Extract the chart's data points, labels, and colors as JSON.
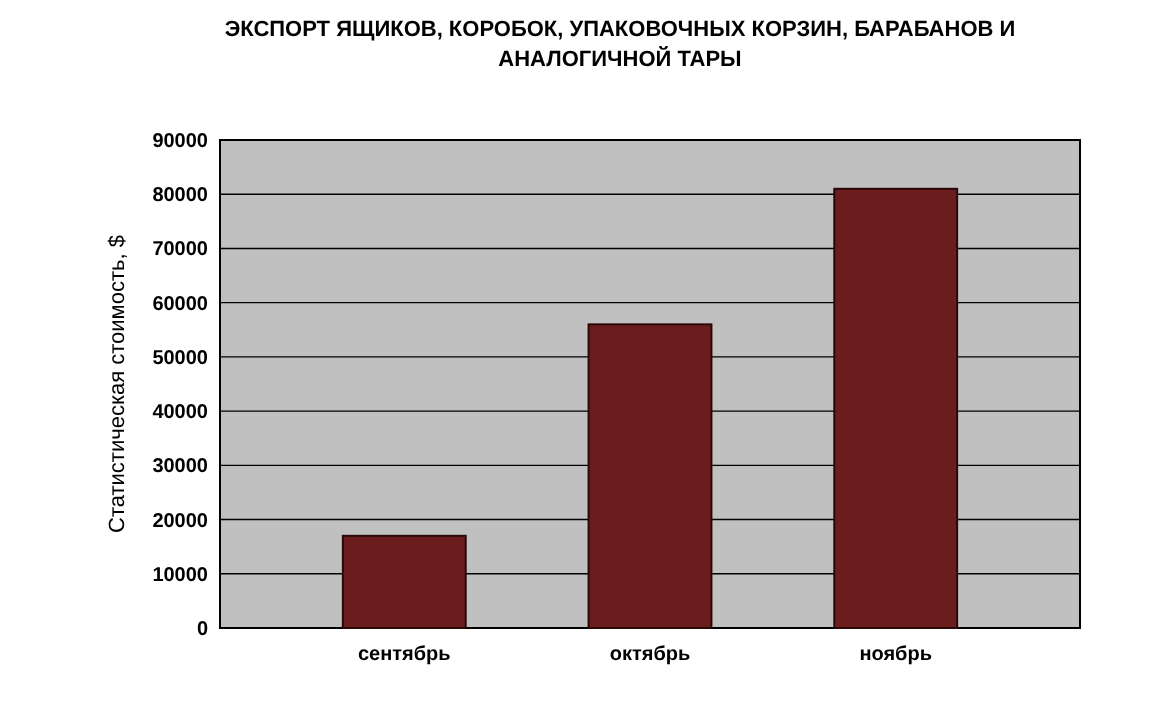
{
  "chart_data": {
    "type": "bar",
    "title": "ЭКСПОРТ ЯЩИКОВ, КОРОБОК, УПАКОВОЧНЫХ КОРЗИН, БАРАБАНОВ И АНАЛОГИЧНОЙ ТАРЫ",
    "ylabel": "Статистическая стоимость, $",
    "categories": [
      "сентябрь",
      "октябрь",
      "ноябрь"
    ],
    "values": [
      17000,
      56000,
      81000
    ],
    "color": "#6b1c1c",
    "ylim": [
      0,
      90000
    ],
    "yticks": [
      0,
      10000,
      20000,
      30000,
      40000,
      50000,
      60000,
      70000,
      80000,
      90000
    ],
    "grid": "y"
  }
}
